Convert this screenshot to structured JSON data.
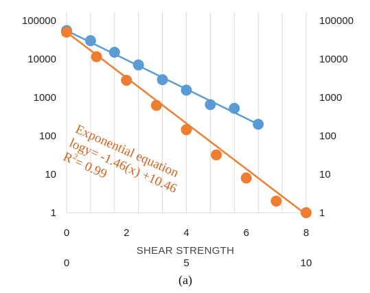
{
  "chart_data": {
    "type": "scatter",
    "title": "",
    "xlabel": "SHEAR STRENGTH",
    "caption": "(a)",
    "y_scale": "log",
    "ylim": [
      1,
      100000
    ],
    "y_ticks": [
      "1",
      "10",
      "100",
      "1000",
      "10000",
      "100000"
    ],
    "y_ticks_right": [
      "1",
      "10",
      "100",
      "1000",
      "10000",
      "100000"
    ],
    "xlim_primary": [
      0,
      8
    ],
    "x_ticks_primary": [
      "0",
      "2",
      "4",
      "6",
      "8"
    ],
    "xlim_secondary": [
      0,
      10
    ],
    "x_ticks_secondary": [
      "0",
      "5",
      "10"
    ],
    "grid": "vertical",
    "legend": "none",
    "annotation": {
      "line1": "Exponential equation",
      "line2": "logy= -1.46(x) +10.46",
      "line3_prefix": "R",
      "line3_sup": "2",
      "line3_suffix": "= 0.99"
    },
    "series": [
      {
        "color": "#5b9bd5",
        "x_axis": "primary",
        "x": [
          0,
          0.8,
          1.6,
          2.4,
          3.2,
          4.0,
          4.8,
          5.6,
          6.4
        ],
        "y": [
          55000,
          30000,
          15000,
          7000,
          2900,
          1550,
          650,
          520,
          200
        ],
        "trendline": {
          "x": [
            0,
            6.4
          ],
          "y": [
            55000,
            200
          ]
        }
      },
      {
        "color": "#ed7d31",
        "x_axis": "secondary",
        "x": [
          0,
          1.25,
          2.5,
          3.75,
          5.0,
          6.25,
          7.5,
          8.75,
          10.0
        ],
        "y": [
          50000,
          11500,
          2800,
          620,
          145,
          32,
          8,
          2,
          1
        ],
        "trendline": {
          "x": [
            0,
            9.9
          ],
          "y": [
            50000,
            1
          ]
        }
      }
    ]
  }
}
